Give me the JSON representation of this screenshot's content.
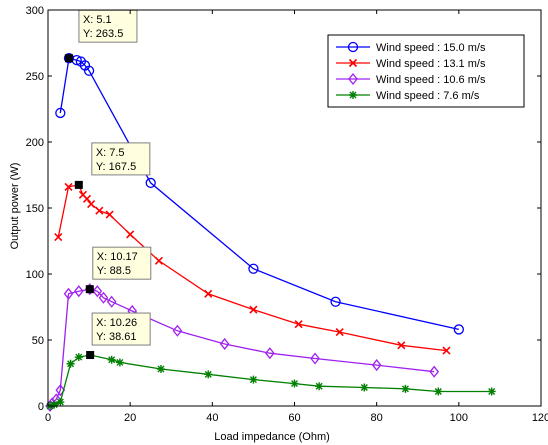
{
  "chart_data": {
    "type": "line",
    "title": "",
    "xlabel": "Load impedance (Ohm)",
    "ylabel": "Output power (W)",
    "xlim": [
      0,
      120
    ],
    "ylim": [
      0,
      300
    ],
    "xticks": [
      "0",
      "20",
      "40",
      "60",
      "80",
      "100",
      "120"
    ],
    "yticks": [
      "0",
      "50",
      "100",
      "150",
      "200",
      "250",
      "300"
    ],
    "grid": false,
    "legend": "top-right",
    "series": [
      {
        "name": "Wind speed : 15.0 m/s",
        "color": "#0000ff",
        "marker": "circle",
        "x": [
          3,
          5.1,
          7,
          8,
          9,
          10,
          25,
          50,
          70,
          100
        ],
        "y": [
          222,
          263.5,
          262,
          261,
          258,
          254,
          169,
          104,
          79,
          58
        ]
      },
      {
        "name": "Wind speed : 13.1 m/s",
        "color": "#ff0000",
        "marker": "x",
        "x": [
          2.5,
          5,
          7.5,
          8.5,
          9.5,
          10.5,
          12.5,
          15,
          20,
          27,
          39,
          50,
          61,
          71,
          86,
          97
        ],
        "y": [
          128,
          166,
          167.5,
          160,
          157,
          153,
          148,
          145,
          130,
          110,
          85,
          73,
          62,
          56,
          46,
          42
        ]
      },
      {
        "name": "Wind speed : 10.6 m/s",
        "color": "#a020f0",
        "marker": "diamond",
        "x": [
          0.5,
          1,
          2,
          3,
          5,
          7.5,
          10.17,
          12,
          13.5,
          15.5,
          20.5,
          31.5,
          43,
          54,
          65,
          80,
          94
        ],
        "y": [
          0,
          2,
          5,
          12,
          85,
          87,
          88.5,
          87,
          82,
          79,
          72,
          57,
          47,
          40,
          36,
          31,
          26
        ]
      },
      {
        "name": "Wind speed :  7.6 m/s",
        "color": "#008000",
        "marker": "star",
        "x": [
          0.5,
          1.5,
          3,
          5.5,
          7.5,
          10.26,
          15.5,
          17.5,
          27.5,
          39,
          50,
          60,
          66,
          77,
          87,
          95,
          108
        ],
        "y": [
          0,
          1,
          3,
          32,
          37,
          38.61,
          35,
          33,
          28,
          24,
          20,
          17,
          15,
          14,
          13,
          11,
          11
        ]
      }
    ],
    "annotations": [
      {
        "x": 5.1,
        "y": 263.5,
        "line1": "X: 5.1",
        "line2": "Y: 263.5"
      },
      {
        "x": 7.5,
        "y": 167.5,
        "line1": "X: 7.5",
        "line2": "Y: 167.5"
      },
      {
        "x": 10.17,
        "y": 88.5,
        "line1": "X: 10.17",
        "line2": "Y: 88.5"
      },
      {
        "x": 10.26,
        "y": 38.61,
        "line1": "X: 10.26",
        "line2": "Y: 38.61"
      }
    ]
  }
}
